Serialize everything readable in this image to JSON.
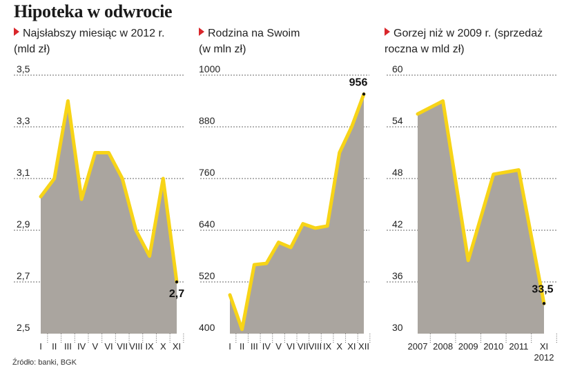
{
  "title": "Hipoteka w odwrocie",
  "source": "Źródło: banki, BGK",
  "charts": [
    {
      "subtitle_line1": "Najsłabszy miesiąc w 2012 r.",
      "subtitle_line2": "(mld zł)"
    },
    {
      "subtitle_line1": "Rodzina na Swoim",
      "subtitle_line2": "(w mln zł)"
    },
    {
      "subtitle_line1": "Gorzej niż w 2009 r. (sprzedaż",
      "subtitle_line2": "roczna w mld zł)"
    }
  ],
  "colors": {
    "line": "#f7d417",
    "area": "#aaa59f",
    "grid": "#666666",
    "accent": "#d9262b"
  },
  "chart_data": [
    {
      "type": "area",
      "title": "Najsłabszy miesiąc w 2012 r. (mld zł)",
      "categories": [
        "I",
        "II",
        "III",
        "IV",
        "V",
        "VI",
        "VII",
        "VIII",
        "IX",
        "X",
        "XI"
      ],
      "values": [
        3.03,
        3.1,
        3.4,
        3.02,
        3.2,
        3.2,
        3.1,
        2.9,
        2.8,
        3.1,
        2.7
      ],
      "yticks": [
        "3,5",
        "3,3",
        "3,1",
        "2,9",
        "2,7",
        "2,5"
      ],
      "ylim": [
        2.5,
        3.5
      ],
      "grid": true,
      "end_label": "2,7"
    },
    {
      "type": "area",
      "title": "Rodzina na Swoim (w mln zł)",
      "categories": [
        "I",
        "II",
        "III",
        "IV",
        "V",
        "VI",
        "VII",
        "VIII",
        "IX",
        "X",
        "XI",
        "XII"
      ],
      "values": [
        490,
        410,
        560,
        563,
        612,
        600,
        655,
        645,
        650,
        820,
        880,
        956
      ],
      "yticks": [
        "1000",
        "880",
        "760",
        "640",
        "520",
        "400"
      ],
      "ylim": [
        400,
        1000
      ],
      "grid": true,
      "end_label": "956"
    },
    {
      "type": "area",
      "title": "Gorzej niż w 2009 r. (sprzedaż roczna w mld zł)",
      "categories": [
        "2007",
        "2008",
        "2009",
        "2010",
        "2011",
        "XI 2012"
      ],
      "values": [
        55.5,
        57.0,
        38.5,
        48.5,
        49.0,
        33.5
      ],
      "yticks": [
        "60",
        "54",
        "48",
        "42",
        "36",
        "30"
      ],
      "ylim": [
        30,
        60
      ],
      "grid": true,
      "end_label": "33,5"
    }
  ]
}
